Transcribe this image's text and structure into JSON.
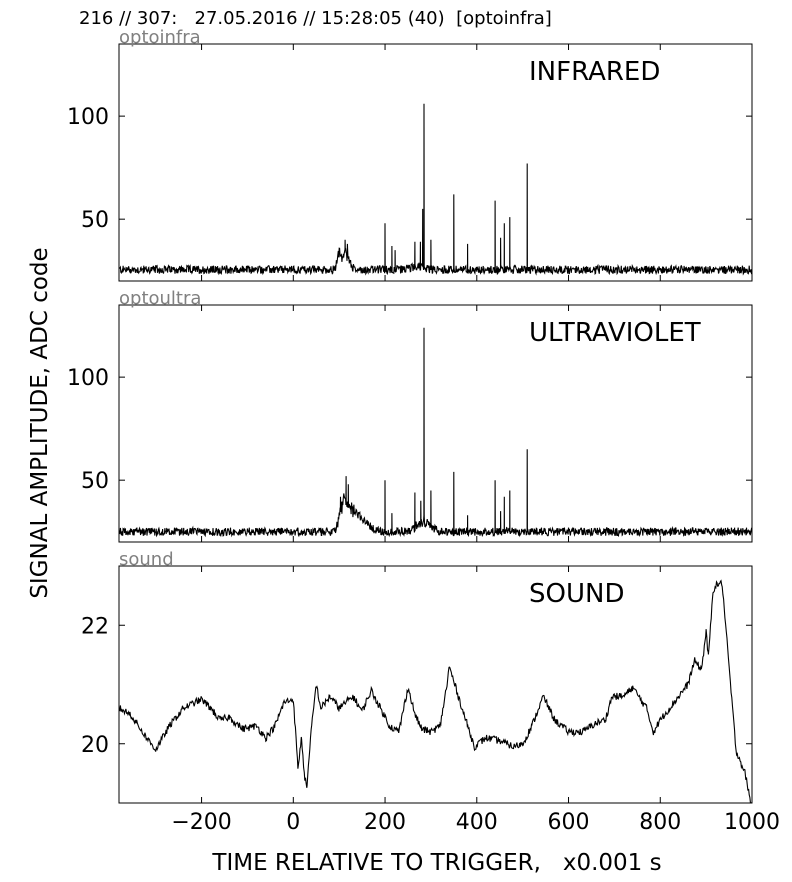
{
  "header": {
    "title": "216 // 307:   27.05.2016 // 15:28:05 (40)  [optoinfra]"
  },
  "axes": {
    "ylabel": "SIGNAL AMPLITUDE,  ADC code",
    "xlabel": "TIME RELATIVE TO TRIGGER,   x0.001 s"
  },
  "chart_data": [
    {
      "type": "line",
      "source_label": "optoinfra",
      "title": "INFRARED",
      "xlim": [
        -380,
        1000
      ],
      "ylim": [
        20,
        135
      ],
      "xticks": [
        -200,
        0,
        200,
        400,
        600,
        800,
        1000
      ],
      "yticks": [
        50,
        100
      ],
      "series": [
        {
          "baseline": 25.5,
          "noise": 2.0,
          "bumps": [
            {
              "x": 100,
              "y": 33.0,
              "w": 6
            },
            {
              "x": 115,
              "y": 34.0,
              "w": 10
            },
            {
              "x": 270,
              "y": 27.0,
              "w": 20
            }
          ],
          "spikes": [
            {
              "x": 113,
              "y": 40
            },
            {
              "x": 118,
              "y": 38
            },
            {
              "x": 200,
              "y": 48
            },
            {
              "x": 215,
              "y": 37
            },
            {
              "x": 222,
              "y": 35
            },
            {
              "x": 265,
              "y": 39
            },
            {
              "x": 277,
              "y": 39
            },
            {
              "x": 282,
              "y": 55
            },
            {
              "x": 285,
              "y": 106
            },
            {
              "x": 300,
              "y": 40
            },
            {
              "x": 350,
              "y": 62
            },
            {
              "x": 380,
              "y": 38
            },
            {
              "x": 440,
              "y": 59
            },
            {
              "x": 452,
              "y": 41
            },
            {
              "x": 460,
              "y": 48
            },
            {
              "x": 472,
              "y": 51
            },
            {
              "x": 510,
              "y": 77
            }
          ]
        }
      ]
    },
    {
      "type": "line",
      "source_label": "optoultra",
      "title": "ULTRAVIOLET",
      "xlim": [
        -380,
        1000
      ],
      "ylim": [
        20,
        135
      ],
      "xticks": [
        -200,
        0,
        200,
        400,
        600,
        800,
        1000
      ],
      "yticks": [
        50,
        100
      ],
      "series": [
        {
          "baseline": 25.0,
          "noise": 2.0,
          "bumps": [
            {
              "x": 108,
              "y": 37.0,
              "w": 10
            },
            {
              "x": 128,
              "y": 35.0,
              "w": 18
            },
            {
              "x": 155,
              "y": 29.0,
              "w": 20
            },
            {
              "x": 285,
              "y": 30.0,
              "w": 20
            }
          ],
          "spikes": [
            {
              "x": 103,
              "y": 42
            },
            {
              "x": 115,
              "y": 52
            },
            {
              "x": 120,
              "y": 48
            },
            {
              "x": 200,
              "y": 50
            },
            {
              "x": 215,
              "y": 34
            },
            {
              "x": 265,
              "y": 44
            },
            {
              "x": 278,
              "y": 40
            },
            {
              "x": 285,
              "y": 124
            },
            {
              "x": 300,
              "y": 45
            },
            {
              "x": 350,
              "y": 54
            },
            {
              "x": 380,
              "y": 33
            },
            {
              "x": 440,
              "y": 50
            },
            {
              "x": 452,
              "y": 35
            },
            {
              "x": 460,
              "y": 42
            },
            {
              "x": 472,
              "y": 45
            },
            {
              "x": 510,
              "y": 65
            }
          ]
        }
      ]
    },
    {
      "type": "line",
      "source_label": "sound",
      "title": "SOUND",
      "xlim": [
        -380,
        1000
      ],
      "ylim": [
        19.0,
        23.0
      ],
      "xticks": [
        -200,
        0,
        200,
        400,
        600,
        800,
        1000
      ],
      "yticks": [
        20,
        22
      ],
      "series": [
        {
          "noise": 0.06,
          "points": [
            [
              -380,
              20.6
            ],
            [
              -355,
              20.5
            ],
            [
              -320,
              20.1
            ],
            [
              -300,
              19.9
            ],
            [
              -270,
              20.3
            ],
            [
              -240,
              20.6
            ],
            [
              -200,
              20.75
            ],
            [
              -180,
              20.6
            ],
            [
              -160,
              20.4
            ],
            [
              -140,
              20.45
            ],
            [
              -110,
              20.25
            ],
            [
              -80,
              20.3
            ],
            [
              -60,
              20.1
            ],
            [
              -40,
              20.3
            ],
            [
              -20,
              20.7
            ],
            [
              0,
              20.75
            ],
            [
              10,
              19.6
            ],
            [
              18,
              20.1
            ],
            [
              25,
              19.4
            ],
            [
              30,
              19.3
            ],
            [
              40,
              20.3
            ],
            [
              50,
              21.0
            ],
            [
              60,
              20.6
            ],
            [
              80,
              20.8
            ],
            [
              100,
              20.6
            ],
            [
              130,
              20.8
            ],
            [
              150,
              20.55
            ],
            [
              170,
              20.9
            ],
            [
              190,
              20.6
            ],
            [
              210,
              20.3
            ],
            [
              230,
              20.2
            ],
            [
              250,
              20.95
            ],
            [
              265,
              20.5
            ],
            [
              280,
              20.25
            ],
            [
              300,
              20.2
            ],
            [
              320,
              20.3
            ],
            [
              335,
              21.0
            ],
            [
              340,
              21.3
            ],
            [
              360,
              20.8
            ],
            [
              380,
              20.3
            ],
            [
              395,
              19.95
            ],
            [
              420,
              20.1
            ],
            [
              450,
              20.05
            ],
            [
              480,
              19.95
            ],
            [
              500,
              20.0
            ],
            [
              520,
              20.3
            ],
            [
              545,
              20.8
            ],
            [
              570,
              20.4
            ],
            [
              600,
              20.2
            ],
            [
              630,
              20.2
            ],
            [
              660,
              20.35
            ],
            [
              680,
              20.4
            ],
            [
              695,
              20.8
            ],
            [
              720,
              20.8
            ],
            [
              740,
              20.95
            ],
            [
              770,
              20.6
            ],
            [
              785,
              20.2
            ],
            [
              800,
              20.4
            ],
            [
              820,
              20.6
            ],
            [
              840,
              20.8
            ],
            [
              860,
              21.0
            ],
            [
              875,
              21.4
            ],
            [
              890,
              21.25
            ],
            [
              900,
              21.9
            ],
            [
              905,
              21.45
            ],
            [
              915,
              22.6
            ],
            [
              925,
              22.7
            ],
            [
              935,
              22.7
            ],
            [
              950,
              21.3
            ],
            [
              965,
              19.9
            ],
            [
              985,
              19.5
            ],
            [
              1000,
              18.9
            ]
          ]
        }
      ]
    }
  ]
}
